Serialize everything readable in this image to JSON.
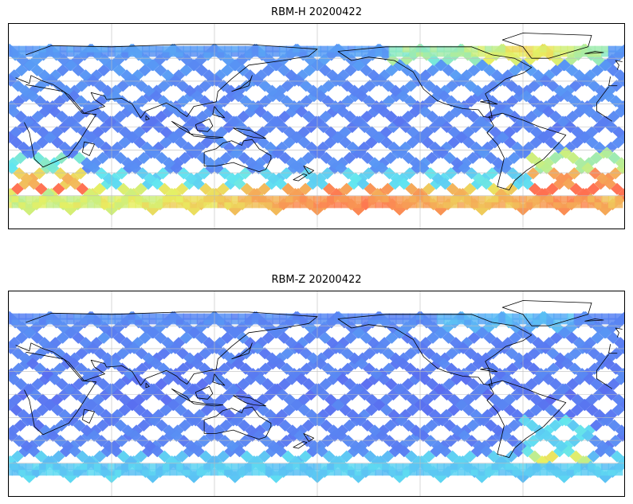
{
  "panels": [
    {
      "title": "RBM-H 20200422",
      "variable": "RBM-H",
      "date": "20200422",
      "colormap": "jet (semi-transparent)",
      "data_coverage": "satellite swath crossing-track pattern, latitudes approx 70S to 70N",
      "high_value_regions": [
        "Southern Ocean south of Australia and Pacific",
        "South Atlantic east of South America",
        "northern Atlantic / Europe high latitudes",
        "southern Africa coast"
      ],
      "colors": {
        "low": "#5a5aee",
        "mid_low": "#58a6f5",
        "mid": "#60e6f0",
        "mid_high": "#e8f060",
        "high": "#ff7050"
      }
    },
    {
      "title": "RBM-Z 20200422",
      "variable": "RBM-Z",
      "date": "20200422",
      "colormap": "jet (semi-transparent)",
      "data_coverage": "satellite swath crossing-track pattern, latitudes approx 70S to 70N",
      "high_value_regions": [
        "South Atlantic near southern South America",
        "Southern Ocean (moderate)"
      ],
      "colors": {
        "low": "#5a5aee",
        "mid_low": "#58a6f5",
        "mid": "#60e6f0",
        "mid_high": "#e8f060",
        "high": "#ff7050"
      }
    }
  ],
  "map": {
    "projection": "cylindrical, centered on 180 longitude",
    "gridlines": true,
    "coastlines": true
  }
}
